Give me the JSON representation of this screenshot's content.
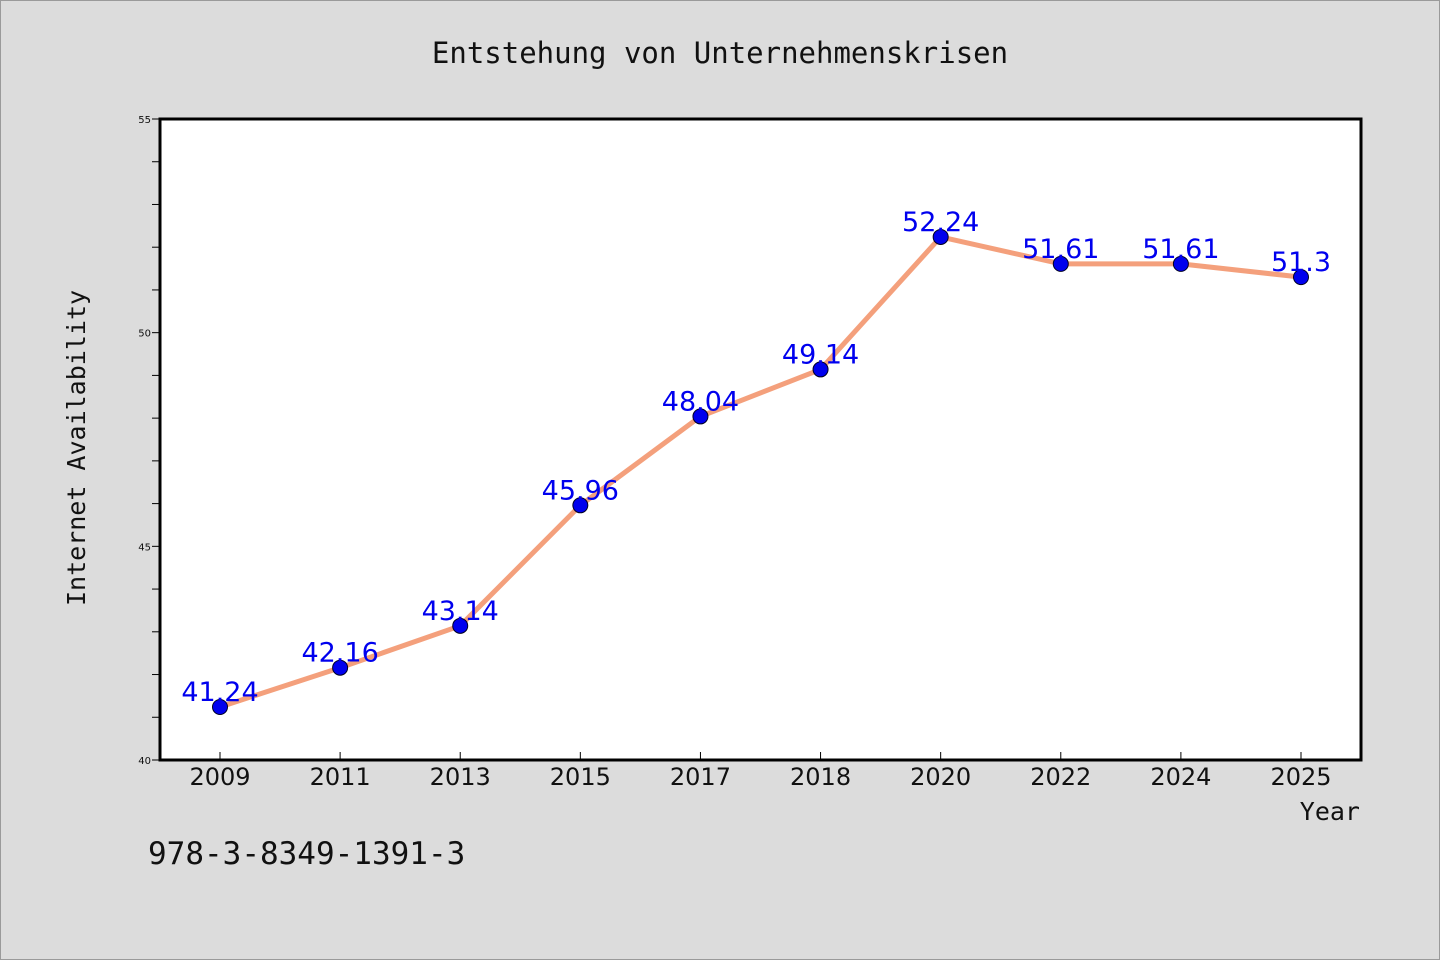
{
  "chart_data": {
    "type": "line",
    "title": "Entstehung von Unternehmenskrisen",
    "xlabel": "Year",
    "ylabel": "Internet Availability",
    "categories": [
      "2009",
      "2011",
      "2013",
      "2015",
      "2017",
      "2018",
      "2020",
      "2022",
      "2024",
      "2025"
    ],
    "series": [
      {
        "values": [
          41.24,
          42.16,
          43.14,
          45.96,
          48.04,
          49.14,
          52.24,
          51.61,
          51.61,
          51.3
        ],
        "labels": [
          "41.24",
          "42.16",
          "43.14",
          "45.96",
          "48.04",
          "49.14",
          "52.24",
          "51.61",
          "51.61",
          "51.3"
        ]
      }
    ],
    "ylim": [
      40,
      55
    ],
    "yticks": [
      40,
      45,
      50,
      55
    ],
    "ytick_labels": [
      "40",
      "45",
      "50",
      "55"
    ],
    "grid": false,
    "legend": "none"
  },
  "footer": {
    "isbn": "978-3-8349-1391-3"
  },
  "colors": {
    "background": "#dcdcdc",
    "plot_area": "#ffffff",
    "line": "#f4a07c",
    "marker": "#0000ee",
    "data_label": "#0000ee"
  }
}
